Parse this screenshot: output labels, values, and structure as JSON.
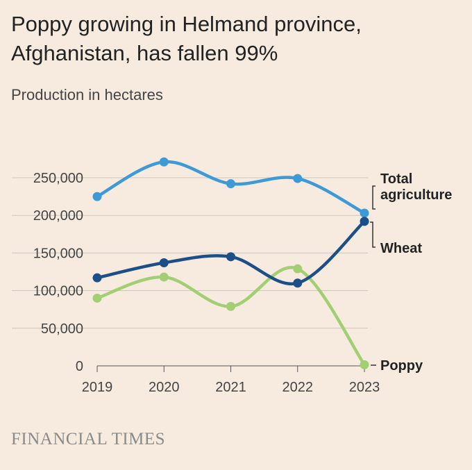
{
  "header": {
    "title": "Poppy growing in Helmand province, Afghanistan, has fallen 99%",
    "subtitle": "Production in hectares"
  },
  "footer": {
    "source": "FINANCIAL TIMES"
  },
  "chart_data": {
    "type": "line",
    "title": "Poppy growing in Helmand province, Afghanistan, has fallen 99%",
    "subtitle": "Production in hectares",
    "xlabel": "",
    "ylabel": "",
    "x": [
      2019,
      2020,
      2021,
      2022,
      2023
    ],
    "x_tick_labels": [
      "2019",
      "2020",
      "2021",
      "2022",
      "2023"
    ],
    "y_ticks": [
      0,
      50000,
      100000,
      150000,
      200000,
      250000
    ],
    "y_tick_labels": [
      "0",
      "50,000",
      "100,000",
      "150,000",
      "200,000",
      "250,000"
    ],
    "ylim": [
      0,
      250000
    ],
    "grid": true,
    "legend": "direct labels at right end of lines",
    "series": [
      {
        "name": "Total agriculture",
        "label_lines": [
          "Total",
          "agriculture"
        ],
        "color": "#3d9ad6",
        "values": [
          225000,
          271000,
          242000,
          249000,
          203000
        ]
      },
      {
        "name": "Wheat",
        "label_lines": [
          "Wheat"
        ],
        "color": "#1c4f87",
        "values": [
          117000,
          137000,
          145000,
          110000,
          192000
        ]
      },
      {
        "name": "Poppy",
        "label_lines": [
          "Poppy"
        ],
        "color": "#a2cf74",
        "values": [
          90000,
          118000,
          79000,
          129000,
          1500
        ]
      }
    ]
  }
}
